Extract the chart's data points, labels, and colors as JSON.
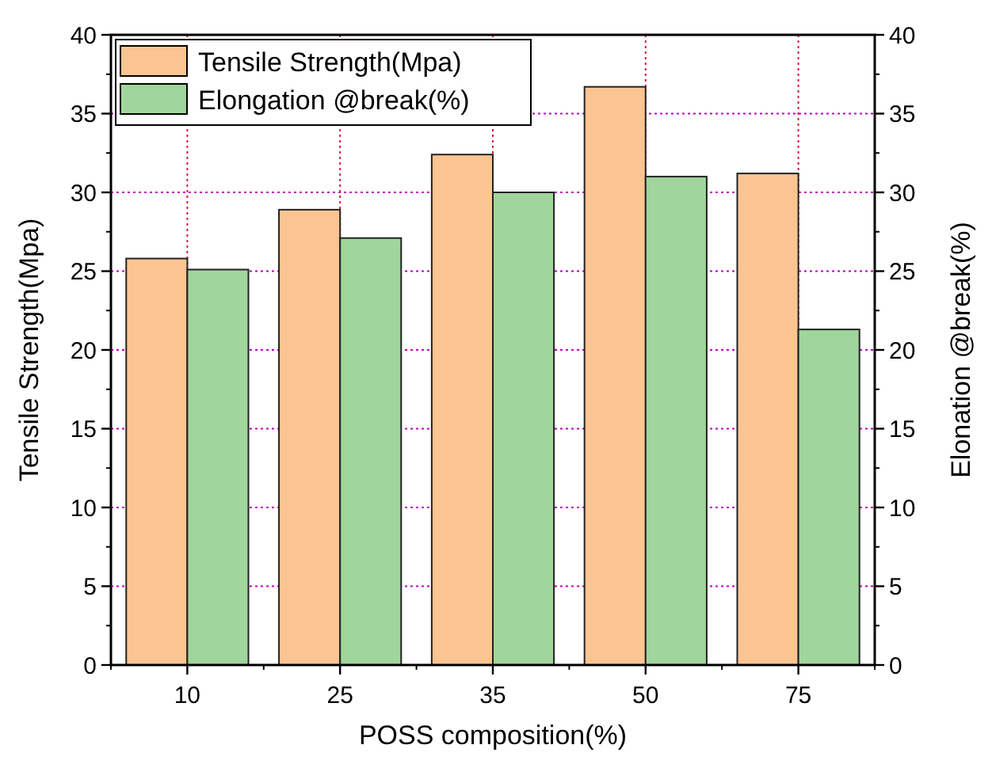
{
  "chart_data": {
    "type": "bar",
    "xlabel": "POSS composition(%)",
    "ylabel": "Tensile Strength(Mpa)",
    "y2label": "Elonation @break(%)",
    "categories": [
      "10",
      "25",
      "35",
      "50",
      "75"
    ],
    "series": [
      {
        "name": "Tensile Strength(Mpa)",
        "color": "#fbc592",
        "values": [
          25.8,
          28.9,
          32.4,
          36.7,
          31.2
        ]
      },
      {
        "name": "Elongation @break(%)",
        "color": "#a0d59b",
        "values": [
          25.1,
          27.1,
          30.0,
          31.0,
          21.3
        ]
      }
    ],
    "ylim": [
      0,
      40
    ],
    "yticks": [
      0,
      5,
      10,
      15,
      20,
      25,
      30,
      35,
      40
    ],
    "y2lim": [
      0,
      40
    ],
    "y2ticks": [
      0,
      5,
      10,
      15,
      20,
      25,
      30,
      35,
      40
    ],
    "grid": true,
    "legend": "top left"
  }
}
